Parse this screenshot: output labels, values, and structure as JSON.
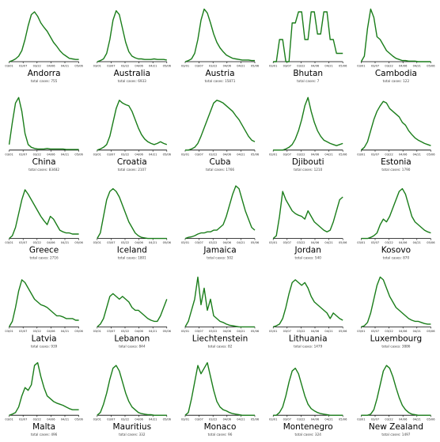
{
  "chart_data": [
    {
      "type": "line",
      "title": "Andorra",
      "subtitle": "total cases: 755",
      "x_ticks": [
        "03/01",
        "03/07",
        "03/22",
        "04/06",
        "04/21",
        "05/06"
      ],
      "series": [
        {
          "values": [
            0,
            0.02,
            0.05,
            0.1,
            0.2,
            0.4,
            0.65,
            0.85,
            0.9,
            0.82,
            0.7,
            0.62,
            0.55,
            0.45,
            0.35,
            0.28,
            0.2,
            0.14,
            0.1,
            0.06,
            0.05,
            0.04,
            0.04
          ]
        }
      ]
    },
    {
      "type": "line",
      "title": "Australia",
      "subtitle": "total cases: 6933",
      "x_ticks": [
        "03/01",
        "03/07",
        "03/22",
        "04/06",
        "04/21",
        "05/06"
      ],
      "series": [
        {
          "values": [
            0,
            0.02,
            0.05,
            0.15,
            0.4,
            0.75,
            0.92,
            0.85,
            0.6,
            0.35,
            0.18,
            0.1,
            0.07,
            0.05,
            0.05,
            0.04,
            0.04,
            0.04,
            0.05,
            0.04,
            0.04,
            0.04,
            0.03
          ]
        }
      ]
    },
    {
      "type": "line",
      "title": "Austria",
      "subtitle": "total cases: 15871",
      "x_ticks": [
        "03/01",
        "03/07",
        "03/22",
        "04/06",
        "04/21",
        "05/06"
      ],
      "series": [
        {
          "values": [
            0,
            0.02,
            0.05,
            0.15,
            0.4,
            0.75,
            0.95,
            0.88,
            0.7,
            0.5,
            0.35,
            0.25,
            0.18,
            0.12,
            0.09,
            0.06,
            0.05,
            0.04,
            0.03,
            0.03,
            0.03,
            0.02,
            0.02
          ]
        }
      ]
    },
    {
      "type": "line",
      "title": "Bhutan",
      "subtitle": "total cases: 7",
      "x_ticks": [
        "03/01",
        "03/07",
        "03/22",
        "04/06",
        "04/21",
        "05/06"
      ],
      "series": [
        {
          "values": [
            0,
            0,
            0.4,
            0.4,
            0,
            0,
            0.7,
            0.7,
            0.9,
            0.9,
            0.4,
            0.4,
            0.9,
            0.9,
            0.5,
            0.5,
            0.9,
            0.9,
            0.4,
            0.4,
            0.15,
            0.15,
            0.15
          ]
        }
      ]
    },
    {
      "type": "line",
      "title": "Cambodia",
      "subtitle": "total cases: 122",
      "x_ticks": [
        "03/01",
        "03/07",
        "03/22",
        "04/06",
        "04/21",
        "05/06"
      ],
      "series": [
        {
          "values": [
            0,
            0.1,
            0.6,
            0.95,
            0.8,
            0.45,
            0.4,
            0.3,
            0.2,
            0.15,
            0.1,
            0.06,
            0.04,
            0.02,
            0.02,
            0.01,
            0.01,
            0.01,
            0,
            0,
            0,
            0,
            0
          ]
        }
      ]
    },
    {
      "type": "line",
      "title": "China",
      "subtitle": "total cases: 83482",
      "x_ticks": [
        "03/01",
        "03/07",
        "03/22",
        "04/06",
        "04/21",
        "05/06"
      ],
      "series": [
        {
          "values": [
            0.1,
            0.5,
            0.85,
            0.95,
            0.7,
            0.3,
            0.1,
            0.05,
            0.03,
            0.02,
            0.02,
            0.02,
            0.03,
            0.02,
            0.02,
            0.02,
            0.02,
            0.02,
            0.01,
            0.01,
            0.01,
            0.01,
            0.01
          ]
        }
      ]
    },
    {
      "type": "line",
      "title": "Croatia",
      "subtitle": "total cases: 2107",
      "x_ticks": [
        "03/01",
        "03/07",
        "03/22",
        "04/06",
        "04/21",
        "05/06"
      ],
      "series": [
        {
          "values": [
            0,
            0.02,
            0.05,
            0.1,
            0.25,
            0.5,
            0.75,
            0.9,
            0.85,
            0.82,
            0.8,
            0.7,
            0.55,
            0.4,
            0.28,
            0.2,
            0.15,
            0.12,
            0.1,
            0.12,
            0.15,
            0.12,
            0.1
          ]
        }
      ]
    },
    {
      "type": "line",
      "title": "Cuba",
      "subtitle": "total cases: 1766",
      "x_ticks": [
        "03/01",
        "03/07",
        "03/22",
        "04/06",
        "04/21",
        "05/06"
      ],
      "series": [
        {
          "values": [
            0,
            0,
            0.02,
            0.05,
            0.12,
            0.25,
            0.4,
            0.55,
            0.7,
            0.85,
            0.9,
            0.88,
            0.85,
            0.8,
            0.75,
            0.7,
            0.62,
            0.55,
            0.45,
            0.35,
            0.25,
            0.18,
            0.15
          ]
        }
      ]
    },
    {
      "type": "line",
      "title": "Djibouti",
      "subtitle": "total cases: 1210",
      "x_ticks": [
        "03/01",
        "03/07",
        "03/22",
        "04/06",
        "04/21",
        "05/06"
      ],
      "series": [
        {
          "values": [
            0,
            0,
            0,
            0,
            0.02,
            0.05,
            0.1,
            0.2,
            0.35,
            0.55,
            0.8,
            0.95,
            0.7,
            0.5,
            0.35,
            0.25,
            0.18,
            0.15,
            0.12,
            0.1,
            0.08,
            0.1,
            0.12
          ]
        }
      ]
    },
    {
      "type": "line",
      "title": "Estonia",
      "subtitle": "total cases: 1790",
      "x_ticks": [
        "03/01",
        "03/07",
        "03/22",
        "04/06",
        "04/21",
        "05/06"
      ],
      "series": [
        {
          "values": [
            0,
            0.05,
            0.15,
            0.35,
            0.55,
            0.7,
            0.8,
            0.88,
            0.85,
            0.75,
            0.7,
            0.65,
            0.6,
            0.5,
            0.45,
            0.35,
            0.28,
            0.22,
            0.18,
            0.15,
            0.12,
            0.1,
            0.08
          ]
        }
      ]
    },
    {
      "type": "line",
      "title": "Greece",
      "subtitle": "total cases: 2716",
      "x_ticks": [
        "03/01",
        "03/07",
        "03/22",
        "04/06",
        "04/21",
        "05/06"
      ],
      "series": [
        {
          "values": [
            0,
            0.05,
            0.2,
            0.45,
            0.7,
            0.88,
            0.8,
            0.7,
            0.6,
            0.5,
            0.4,
            0.32,
            0.25,
            0.4,
            0.35,
            0.25,
            0.15,
            0.12,
            0.1,
            0.1,
            0.08,
            0.08,
            0.08
          ]
        }
      ]
    },
    {
      "type": "line",
      "title": "Iceland",
      "subtitle": "total cases: 1801",
      "x_ticks": [
        "03/01",
        "03/07",
        "03/22",
        "04/06",
        "04/21",
        "05/06"
      ],
      "series": [
        {
          "values": [
            0,
            0.1,
            0.4,
            0.7,
            0.85,
            0.9,
            0.85,
            0.75,
            0.6,
            0.45,
            0.3,
            0.2,
            0.1,
            0.05,
            0.02,
            0.01,
            0,
            0,
            0,
            0,
            0,
            0,
            0
          ]
        }
      ]
    },
    {
      "type": "line",
      "title": "Jamaica",
      "subtitle": "total cases: 502",
      "x_ticks": [
        "03/01",
        "03/07",
        "03/22",
        "04/06",
        "04/21",
        "05/06"
      ],
      "series": [
        {
          "values": [
            0,
            0.02,
            0.03,
            0.05,
            0.08,
            0.1,
            0.1,
            0.12,
            0.12,
            0.15,
            0.15,
            0.2,
            0.25,
            0.4,
            0.6,
            0.8,
            0.95,
            0.9,
            0.7,
            0.5,
            0.35,
            0.2,
            0.15
          ]
        }
      ]
    },
    {
      "type": "line",
      "title": "Jordan",
      "subtitle": "total cases: 540",
      "x_ticks": [
        "03/01",
        "03/07",
        "03/22",
        "04/06",
        "04/21",
        "05/06"
      ],
      "series": [
        {
          "values": [
            0,
            0.05,
            0.4,
            0.85,
            0.7,
            0.6,
            0.5,
            0.45,
            0.42,
            0.4,
            0.35,
            0.5,
            0.4,
            0.3,
            0.25,
            0.2,
            0.15,
            0.12,
            0.15,
            0.3,
            0.5,
            0.7,
            0.75
          ]
        }
      ]
    },
    {
      "type": "line",
      "title": "Kosovo",
      "subtitle": "total cases: 870",
      "x_ticks": [
        "03/01",
        "03/07",
        "03/22",
        "04/06",
        "04/21",
        "05/06"
      ],
      "series": [
        {
          "values": [
            0,
            0,
            0,
            0.02,
            0.05,
            0.1,
            0.25,
            0.35,
            0.3,
            0.4,
            0.55,
            0.7,
            0.85,
            0.9,
            0.8,
            0.6,
            0.4,
            0.3,
            0.25,
            0.2,
            0.15,
            0.12,
            0.1
          ]
        }
      ]
    },
    {
      "type": "line",
      "title": "Latvia",
      "subtitle": "total cases: 939",
      "x_ticks": [
        "03/01",
        "03/07",
        "03/22",
        "04/06",
        "04/21",
        "05/06"
      ],
      "series": [
        {
          "values": [
            0,
            0.1,
            0.35,
            0.65,
            0.85,
            0.8,
            0.7,
            0.6,
            0.5,
            0.45,
            0.4,
            0.38,
            0.35,
            0.3,
            0.25,
            0.2,
            0.2,
            0.18,
            0.15,
            0.15,
            0.15,
            0.12,
            0.12
          ]
        }
      ]
    },
    {
      "type": "line",
      "title": "Lebanon",
      "subtitle": "total cases: 844",
      "x_ticks": [
        "03/01",
        "03/07",
        "03/22",
        "04/06",
        "04/21",
        "05/06"
      ],
      "series": [
        {
          "values": [
            0,
            0.05,
            0.15,
            0.35,
            0.55,
            0.6,
            0.55,
            0.5,
            0.55,
            0.5,
            0.45,
            0.35,
            0.3,
            0.3,
            0.25,
            0.2,
            0.15,
            0.12,
            0.1,
            0.1,
            0.2,
            0.35,
            0.5
          ]
        }
      ]
    },
    {
      "type": "line",
      "title": "Liechtenstein",
      "subtitle": "total cases: 82",
      "x_ticks": [
        "03/01",
        "03/07",
        "03/22",
        "04/06",
        "04/21",
        "05/06"
      ],
      "series": [
        {
          "values": [
            0,
            0.1,
            0.3,
            0.5,
            0.9,
            0.4,
            0.7,
            0.3,
            0.5,
            0.2,
            0.15,
            0.1,
            0.08,
            0.05,
            0.03,
            0.02,
            0.01,
            0,
            0,
            0,
            0,
            0,
            0
          ]
        }
      ]
    },
    {
      "type": "line",
      "title": "Lithuania",
      "subtitle": "total cases: 1479",
      "x_ticks": [
        "03/01",
        "03/07",
        "03/22",
        "04/06",
        "04/21",
        "05/06"
      ],
      "series": [
        {
          "values": [
            0,
            0.02,
            0.05,
            0.15,
            0.35,
            0.6,
            0.8,
            0.85,
            0.8,
            0.75,
            0.8,
            0.7,
            0.55,
            0.45,
            0.4,
            0.35,
            0.3,
            0.25,
            0.15,
            0.25,
            0.2,
            0.15,
            0.12
          ]
        }
      ]
    },
    {
      "type": "line",
      "title": "Luxembourg",
      "subtitle": "total cases: 3886",
      "x_ticks": [
        "03/01",
        "03/07",
        "03/22",
        "04/06",
        "04/21",
        "05/06"
      ],
      "series": [
        {
          "values": [
            0,
            0.02,
            0.08,
            0.25,
            0.5,
            0.75,
            0.9,
            0.85,
            0.7,
            0.55,
            0.45,
            0.35,
            0.3,
            0.25,
            0.2,
            0.15,
            0.12,
            0.1,
            0.1,
            0.08,
            0.06,
            0.05,
            0.05
          ]
        }
      ]
    },
    {
      "type": "line",
      "title": "Malta",
      "subtitle": "total cases: 496",
      "x_ticks": [
        "03/01",
        "03/07",
        "03/22",
        "04/06",
        "04/21",
        "05/06"
      ],
      "series": [
        {
          "values": [
            0,
            0.02,
            0.05,
            0.15,
            0.35,
            0.5,
            0.45,
            0.55,
            0.9,
            0.95,
            0.7,
            0.5,
            0.35,
            0.3,
            0.25,
            0.22,
            0.2,
            0.18,
            0.15,
            0.12,
            0.1,
            0.1,
            0.1
          ]
        }
      ]
    },
    {
      "type": "line",
      "title": "Mauritius",
      "subtitle": "total cases: 332",
      "x_ticks": [
        "03/01",
        "03/07",
        "03/22",
        "04/06",
        "04/21",
        "05/06"
      ],
      "series": [
        {
          "values": [
            0,
            0.05,
            0.2,
            0.4,
            0.65,
            0.85,
            0.9,
            0.8,
            0.6,
            0.4,
            0.25,
            0.15,
            0.1,
            0.05,
            0.03,
            0.02,
            0.01,
            0.01,
            0,
            0,
            0,
            0,
            0
          ]
        }
      ]
    },
    {
      "type": "line",
      "title": "Monaco",
      "subtitle": "total cases: 96",
      "x_ticks": [
        "03/01",
        "03/07",
        "03/22",
        "04/06",
        "04/21",
        "05/06"
      ],
      "series": [
        {
          "values": [
            0,
            0.05,
            0.3,
            0.6,
            0.9,
            0.75,
            0.85,
            0.95,
            0.7,
            0.45,
            0.25,
            0.15,
            0.1,
            0.08,
            0.05,
            0.03,
            0.02,
            0.01,
            0,
            0,
            0,
            0,
            0
          ]
        }
      ]
    },
    {
      "type": "line",
      "title": "Montenegro",
      "subtitle": "total cases: 324",
      "x_ticks": [
        "03/01",
        "03/07",
        "03/22",
        "04/06",
        "04/21",
        "05/06"
      ],
      "series": [
        {
          "values": [
            0,
            0,
            0.05,
            0.15,
            0.35,
            0.6,
            0.8,
            0.85,
            0.75,
            0.55,
            0.35,
            0.2,
            0.12,
            0.08,
            0.05,
            0.03,
            0.02,
            0.01,
            0,
            0,
            0,
            0,
            0
          ]
        }
      ]
    },
    {
      "type": "line",
      "title": "New Zealand",
      "subtitle": "total cases: 1497",
      "x_ticks": [
        "03/01",
        "03/07",
        "03/22",
        "04/06",
        "04/21",
        "05/06"
      ],
      "series": [
        {
          "values": [
            0,
            0,
            0,
            0.02,
            0.1,
            0.3,
            0.55,
            0.8,
            0.9,
            0.85,
            0.7,
            0.5,
            0.32,
            0.18,
            0.1,
            0.05,
            0.02,
            0.01,
            0,
            0,
            0,
            0,
            0
          ]
        }
      ]
    }
  ],
  "colors": {
    "line": "#1a7d1a",
    "axis": "#000000",
    "title": "#000000",
    "subtitle": "#444444"
  }
}
